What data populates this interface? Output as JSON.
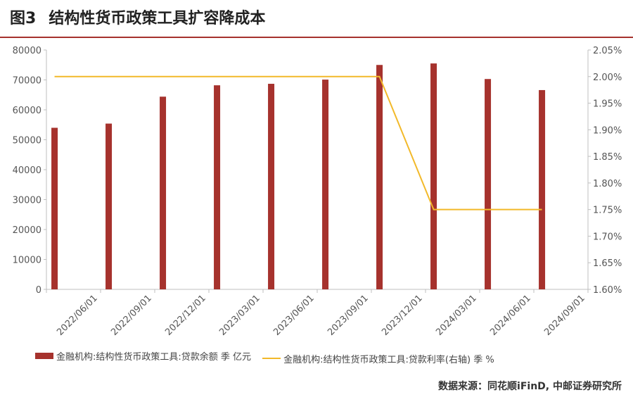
{
  "figure": {
    "number": "图3",
    "title": "结构性货币政策工具扩容降成本",
    "source": "数据来源：同花顺iFinD, 中邮证券研究所"
  },
  "colors": {
    "bar": "#a6322d",
    "line": "#f2b92a",
    "title_rule": "#a6322d"
  },
  "chart_data": {
    "type": "bar",
    "categories": [
      "2022/06/01",
      "2022/09/01",
      "2022/12/01",
      "2023/03/01",
      "2023/06/01",
      "2023/09/01",
      "2023/12/01",
      "2024/03/01",
      "2024/06/01",
      "2024/09/01"
    ],
    "series": [
      {
        "name": "金融机构:结构性货币政策工具:贷款余额 季 亿元",
        "type": "bar",
        "axis": "left",
        "values": [
          54000,
          55400,
          64400,
          68200,
          68700,
          70100,
          75000,
          75500,
          70300,
          66600
        ]
      },
      {
        "name": "金融机构:结构性货币政策工具:贷款利率(右轴) 季 %",
        "type": "line",
        "axis": "right",
        "values": [
          2.0,
          2.0,
          2.0,
          2.0,
          2.0,
          2.0,
          2.0,
          1.75,
          1.75,
          1.75
        ]
      }
    ],
    "y_left": {
      "min": 0,
      "max": 80000,
      "ticks": [
        "0",
        "10000",
        "20000",
        "30000",
        "40000",
        "50000",
        "60000",
        "70000",
        "80000"
      ]
    },
    "y_right": {
      "min": 1.6,
      "max": 2.05,
      "ticks": [
        "1.60%",
        "1.65%",
        "1.70%",
        "1.75%",
        "1.80%",
        "1.85%",
        "1.90%",
        "1.95%",
        "2.00%",
        "2.05%"
      ]
    },
    "grid": false,
    "legend": "bottom"
  }
}
